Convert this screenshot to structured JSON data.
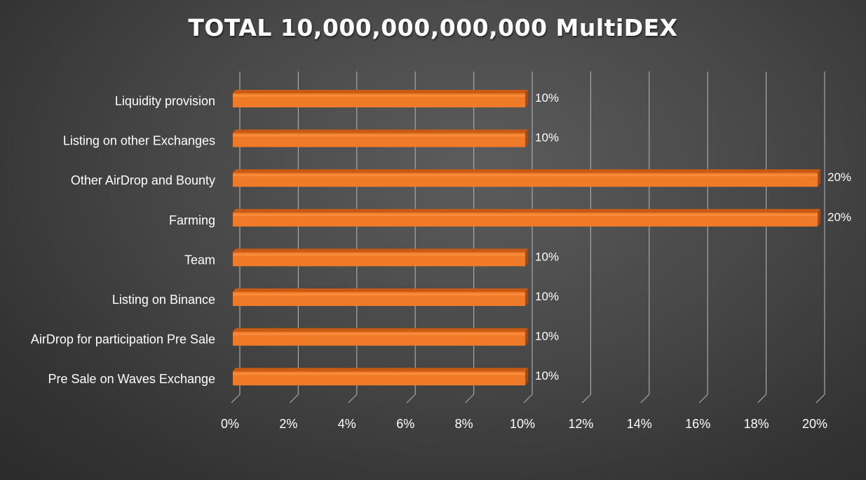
{
  "chart_data": {
    "type": "bar",
    "orientation": "horizontal",
    "title": "TOTAL 10,000,000,000,000 MultiDEX",
    "categories": [
      "Liquidity provision",
      "Listing on other Exchanges",
      "Other AirDrop and Bounty",
      "Farming",
      "Team",
      "Listing on Binance",
      "AirDrop for participation Pre Sale",
      "Pre Sale on Waves Exchange"
    ],
    "values": [
      10,
      10,
      20,
      20,
      10,
      10,
      10,
      10
    ],
    "data_labels": [
      "10%",
      "10%",
      "20%",
      "20%",
      "10%",
      "10%",
      "10%",
      "10%"
    ],
    "xlim": [
      0,
      20
    ],
    "x_ticks": [
      0,
      2,
      4,
      6,
      8,
      10,
      12,
      14,
      16,
      18,
      20
    ],
    "x_tick_labels": [
      "0%",
      "2%",
      "4%",
      "6%",
      "8%",
      "10%",
      "12%",
      "14%",
      "16%",
      "18%",
      "20%"
    ],
    "xlabel": "",
    "ylabel": "",
    "grid": true,
    "legend": "none",
    "bar_color": "#f07a28",
    "bar_top_color": "#c85a14",
    "gridline_color": "#a8a8a8",
    "background_color": "#474747"
  }
}
